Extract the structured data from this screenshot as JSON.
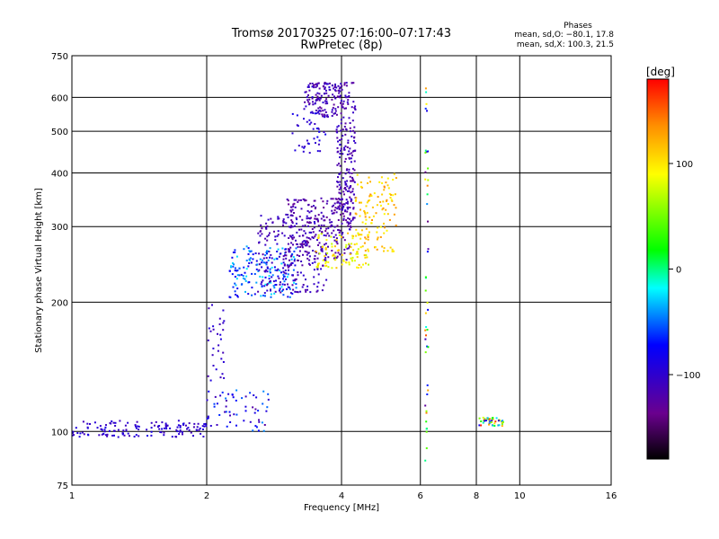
{
  "chart_data": {
    "type": "scatter",
    "title": "Tromsø 20170325 07:16:00–07:17:43",
    "subtitle": "RwPretec (8p)",
    "xlabel": "Frequency [MHz]",
    "ylabel": "Stationary phase Virtual Height [km]",
    "x_scale": "log2",
    "y_scale": "log",
    "xlim": [
      1,
      16
    ],
    "ylim": [
      75,
      750
    ],
    "x_ticks": [
      1,
      2,
      4,
      6,
      8,
      10,
      16
    ],
    "x_tick_labels": [
      "1",
      "2",
      "4",
      "6",
      "8",
      "10",
      "16"
    ],
    "y_ticks": [
      75,
      100,
      200,
      300,
      400,
      500,
      600,
      750
    ],
    "y_tick_labels": [
      "75",
      "100",
      "200",
      "300",
      "400",
      "500",
      "600",
      "750"
    ],
    "grid": true,
    "phase_info": {
      "title": "Phases",
      "line_o": "mean, sd,O: −80.1, 17.8",
      "line_x": "mean, sd,X: 100.3, 21.5"
    },
    "colorbar": {
      "label": "[deg]",
      "range": [
        -180,
        180
      ],
      "ticks": [
        100,
        0,
        -100
      ],
      "tick_labels": [
        "100",
        "0",
        "−100"
      ]
    },
    "clusters": [
      {
        "x": [
          1.0,
          2.0
        ],
        "y": [
          97,
          106
        ],
        "n": 140,
        "phase": [
          -115,
          -85
        ]
      },
      {
        "x": [
          2.0,
          2.75
        ],
        "y": [
          100,
          125
        ],
        "n": 60,
        "phase": [
          -125,
          -40
        ]
      },
      {
        "x": [
          2.0,
          2.2
        ],
        "y": [
          130,
          200
        ],
        "n": 30,
        "phase": [
          -120,
          -90
        ]
      },
      {
        "x": [
          2.25,
          3.2
        ],
        "y": [
          205,
          270
        ],
        "n": 180,
        "phase": [
          -90,
          -20
        ]
      },
      {
        "x": [
          2.6,
          3.7
        ],
        "y": [
          210,
          320
        ],
        "n": 220,
        "phase": [
          -125,
          -95
        ]
      },
      {
        "x": [
          3.0,
          4.2
        ],
        "y": [
          250,
          350
        ],
        "n": 220,
        "phase": [
          -135,
          -105
        ]
      },
      {
        "x": [
          3.3,
          3.9
        ],
        "y": [
          540,
          650
        ],
        "n": 120,
        "phase": [
          -130,
          -95
        ]
      },
      {
        "x": [
          3.1,
          3.7
        ],
        "y": [
          440,
          560
        ],
        "n": 40,
        "phase": [
          -110,
          -80
        ]
      },
      {
        "x": [
          3.9,
          4.3
        ],
        "y": [
          300,
          650
        ],
        "n": 220,
        "phase": [
          -130,
          -100
        ]
      },
      {
        "x": [
          3.5,
          4.6
        ],
        "y": [
          240,
          290
        ],
        "n": 90,
        "phase": [
          70,
          120
        ]
      },
      {
        "x": [
          4.3,
          5.3
        ],
        "y": [
          260,
          400
        ],
        "n": 120,
        "phase": [
          90,
          135
        ]
      },
      {
        "x": [
          6.15,
          6.25
        ],
        "y": [
          85,
          650
        ],
        "n": 45,
        "phase": [
          -150,
          170
        ]
      },
      {
        "x": [
          8.1,
          9.2
        ],
        "y": [
          103,
          108
        ],
        "n": 45,
        "phase": [
          -120,
          170
        ]
      }
    ]
  }
}
